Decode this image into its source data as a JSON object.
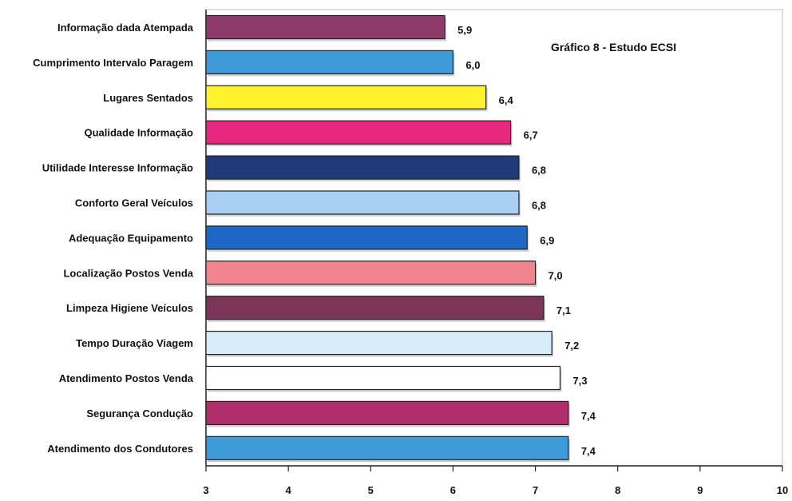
{
  "chart_data": {
    "type": "bar",
    "orientation": "horizontal",
    "title": "Gráfico 8 - Estudo ECSI",
    "xlabel": "",
    "ylabel": "",
    "xlim": [
      3,
      10
    ],
    "ticks": [
      "3",
      "4",
      "5",
      "6",
      "7",
      "8",
      "9",
      "10"
    ],
    "grid": false,
    "categories": [
      "Informação dada Atempada",
      "Cumprimento Intervalo Paragem",
      "Lugares Sentados",
      "Qualidade Informação",
      "Utilidade Interesse Informação",
      "Conforto Geral Veículos",
      "Adequação Equipamento",
      "Localização Postos Venda",
      "Limpeza Higiene Veículos",
      "Tempo Duração Viagem",
      "Atendimento Postos Venda",
      "Segurança Condução",
      "Atendimento dos Condutores"
    ],
    "values": [
      5.9,
      6.0,
      6.4,
      6.7,
      6.8,
      6.8,
      6.9,
      7.0,
      7.1,
      7.2,
      7.3,
      7.4,
      7.4
    ],
    "value_labels": [
      "5,9",
      "6,0",
      "6,4",
      "6,7",
      "6,8",
      "6,8",
      "6,9",
      "7,0",
      "7,1",
      "7,2",
      "7,3",
      "7,4",
      "7,4"
    ],
    "colors": [
      "#8E3B6C",
      "#3E9BD8",
      "#FFF22E",
      "#E8277E",
      "#1E3A78",
      "#A9D0F2",
      "#1F67C7",
      "#F08590",
      "#7A3558",
      "#D6ECF8",
      "#FFFFFF",
      "#B02E6B",
      "#3E9BD8"
    ]
  }
}
